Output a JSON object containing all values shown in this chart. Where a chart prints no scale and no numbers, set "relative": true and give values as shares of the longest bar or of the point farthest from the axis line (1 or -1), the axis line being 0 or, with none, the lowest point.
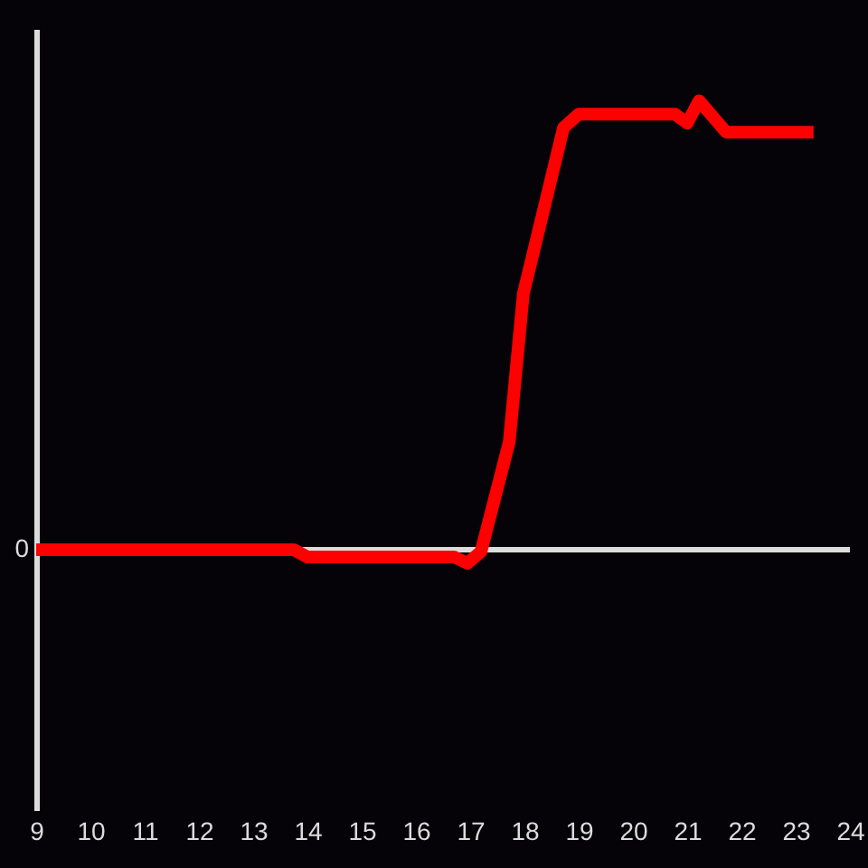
{
  "chart_data": {
    "type": "line",
    "relative": true,
    "x": [
      9,
      13.75,
      14.0,
      16.7,
      16.95,
      17.2,
      17.72,
      17.98,
      18.72,
      19.0,
      20.78,
      21.0,
      21.22,
      21.72,
      23.33
    ],
    "series": [
      {
        "color": "#ff0000",
        "values": [
          0,
          0,
          -0.016,
          -0.016,
          -0.03,
          -0.004,
          0.24,
          0.57,
          0.94,
          0.97,
          0.97,
          0.95,
          1,
          0.93,
          0.93
        ]
      }
    ],
    "xlim": [
      9,
      24
    ],
    "xticks": [
      9,
      10,
      11,
      12,
      13,
      14,
      15,
      16,
      17,
      18,
      19,
      20,
      21,
      22,
      23,
      24
    ],
    "annotations": [
      "0"
    ],
    "line_style": "solid",
    "marker": "none"
  }
}
